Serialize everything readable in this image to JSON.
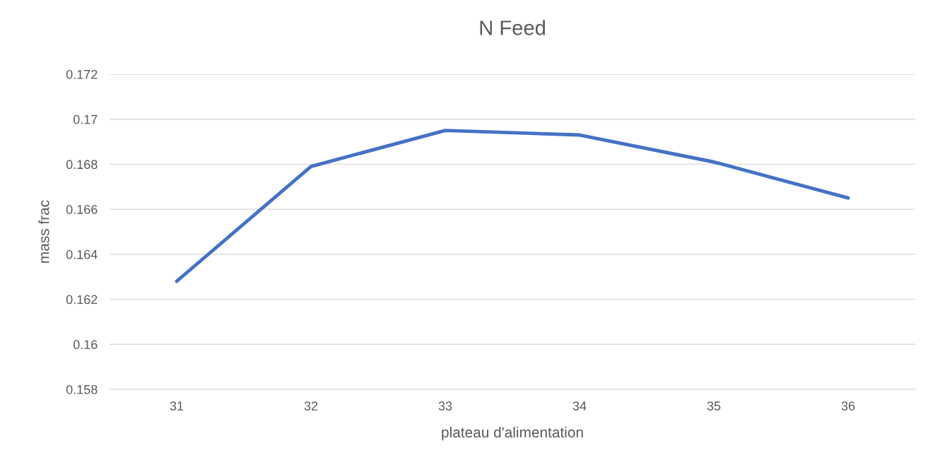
{
  "chart_data": {
    "type": "line",
    "title": "N Feed",
    "xlabel": "plateau d'alimentation",
    "ylabel": "mass frac",
    "categories": [
      "31",
      "32",
      "33",
      "34",
      "35",
      "36"
    ],
    "series": [
      {
        "color": "#4472c4",
        "values": [
          0.1628,
          0.1679,
          0.1695,
          0.1693,
          0.1681,
          0.1665
        ]
      }
    ],
    "ylim": [
      0.158,
      0.172
    ],
    "yticks": [
      0.158,
      0.16,
      0.162,
      0.164,
      0.166,
      0.168,
      0.17,
      0.172
    ],
    "grid": "y",
    "marker": "none",
    "line_style": "solid"
  }
}
